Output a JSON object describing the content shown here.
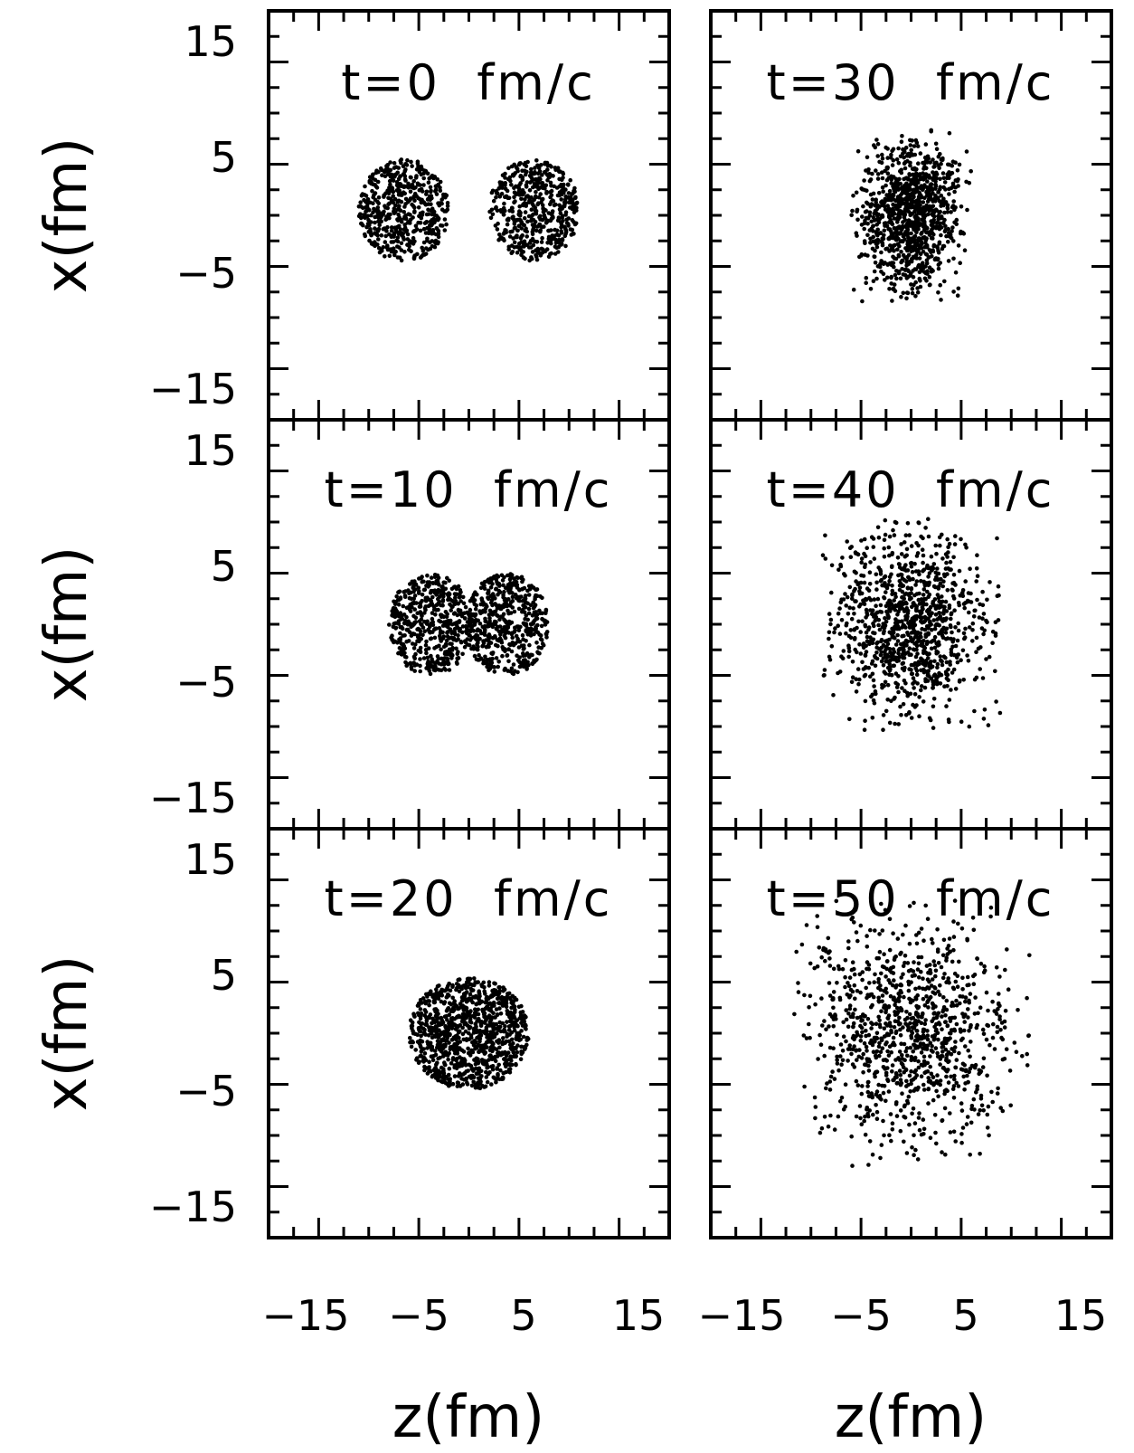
{
  "chart_data": {
    "type": "scatter",
    "layout": "3x2 grid",
    "xlabel": "z(fm)",
    "ylabel": "x(fm)",
    "xlim": [
      -20,
      20
    ],
    "ylim": [
      -20,
      20
    ],
    "xticks_labeled": [
      "−15",
      "−5",
      "5",
      "15"
    ],
    "xtick_values": [
      -15,
      -5,
      5,
      15
    ],
    "yticks_labeled": [
      "15",
      "5",
      "−5",
      "−15"
    ],
    "ytick_values": [
      15,
      5,
      -5,
      -15
    ],
    "minor_tick_step": 2.5,
    "grid": false,
    "panels": [
      {
        "label": "t=0  fm/c",
        "clusters": [
          {
            "cx": -6.5,
            "cy": 0.5,
            "rx": 4.5,
            "ry": 5,
            "n": 520,
            "shape": "disk"
          },
          {
            "cx": 6.5,
            "cy": 0.5,
            "rx": 4.5,
            "ry": 5,
            "n": 520,
            "shape": "disk"
          }
        ]
      },
      {
        "label": "t=30  fm/c",
        "clusters": [
          {
            "cx": 0,
            "cy": 0,
            "rx": 6,
            "ry": 8.5,
            "n": 1040,
            "shape": "diffuse"
          }
        ]
      },
      {
        "label": "t=10  fm/c",
        "clusters": [
          {
            "cx": -3.8,
            "cy": 0,
            "rx": 4.2,
            "ry": 5,
            "n": 520,
            "shape": "disk"
          },
          {
            "cx": 3.8,
            "cy": 0,
            "rx": 4.2,
            "ry": 5,
            "n": 520,
            "shape": "disk"
          }
        ]
      },
      {
        "label": "t=40  fm/c",
        "clusters": [
          {
            "cx": 0,
            "cy": 0,
            "rx": 9,
            "ry": 10.5,
            "n": 1040,
            "shape": "diffuse"
          }
        ]
      },
      {
        "label": "t=20  fm/c",
        "clusters": [
          {
            "cx": 0,
            "cy": 0,
            "rx": 6,
            "ry": 5.5,
            "n": 1040,
            "shape": "disk"
          }
        ]
      },
      {
        "label": "t=50  fm/c",
        "clusters": [
          {
            "cx": 0,
            "cy": 0,
            "rx": 12,
            "ry": 13,
            "n": 1040,
            "shape": "diffuse"
          }
        ]
      }
    ]
  }
}
